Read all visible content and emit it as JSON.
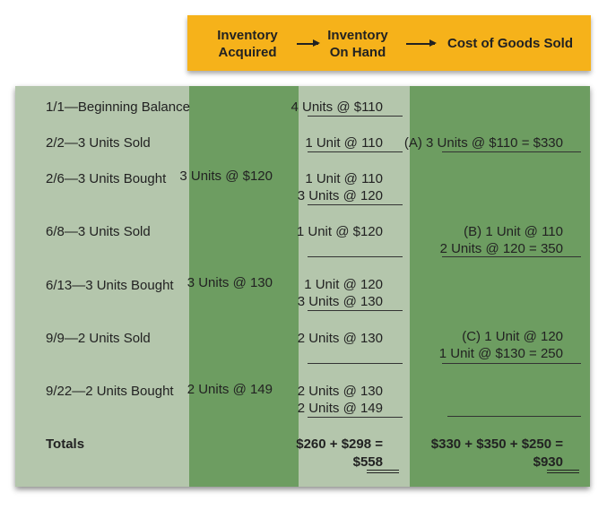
{
  "header": {
    "col_acquired": [
      "Inventory",
      "Acquired"
    ],
    "col_on_hand": [
      "Inventory",
      "On Hand"
    ],
    "col_cogs": "Cost of Goods Sold"
  },
  "rows": [
    {
      "label": "1/1—Beginning Balance",
      "acquired": "",
      "on_hand": [
        "4 Units @ $110"
      ],
      "cogs": []
    },
    {
      "label": "2/2—3 Units Sold",
      "acquired": "",
      "on_hand": [
        "1 Unit  @ 110"
      ],
      "cogs": [
        "(A) 3 Units @ $110 = $330"
      ]
    },
    {
      "label": "2/6—3 Units Bought",
      "acquired": "3 Units @ $120",
      "on_hand": [
        "1 Unit  @ 110",
        "3 Units @ 120"
      ],
      "cogs": []
    },
    {
      "label": "6/8—3 Units Sold",
      "acquired": "",
      "on_hand": [
        "1 Unit  @ $120"
      ],
      "cogs": [
        "(B) 1 Unit  @ 110",
        "2 Units @ 120 = 350"
      ]
    },
    {
      "label": "6/13—3 Units Bought",
      "acquired": "3 Units @ 130",
      "on_hand": [
        "1 Unit  @ 120",
        "3 Units @ 130"
      ],
      "cogs": []
    },
    {
      "label": "9/9—2 Units Sold",
      "acquired": "",
      "on_hand": [
        "2 Units @ 130"
      ],
      "cogs": [
        "(C) 1 Unit  @ 120",
        "1 Unit @ $130 = 250"
      ]
    },
    {
      "label": "9/22—2 Units Bought",
      "acquired": "2 Units @ 149",
      "on_hand": [
        "2 Units @ 130",
        "2 Units @ 149"
      ],
      "cogs": []
    }
  ],
  "totals": {
    "label": "Totals",
    "on_hand": [
      "$260 + $298 =",
      "$558"
    ],
    "cogs": [
      "$330 + $350 + $250 =",
      "$930"
    ]
  },
  "colors": {
    "header_bg": "#f6b21a",
    "light_green": "#b4c6ac",
    "dark_green": "#6d9d61"
  }
}
